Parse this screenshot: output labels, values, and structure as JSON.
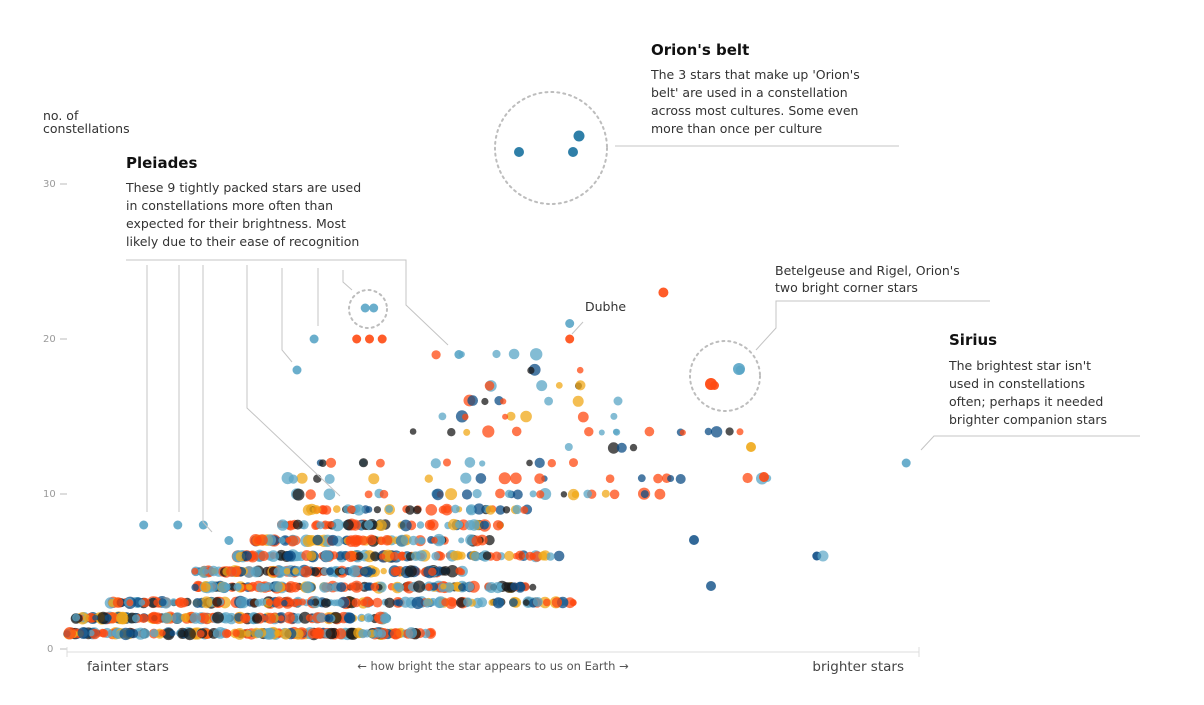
{
  "colors": {
    "blue_light": "#5aa5c6",
    "blue_dark": "#0d4d86",
    "orange_red": "#ff4a12",
    "yellow": "#f0a818",
    "dark": "#1a1a1a"
  },
  "chart_data": {
    "type": "scatter",
    "title": "",
    "xlabel": "← how bright the star appears to us on Earth →",
    "xlabel_left": "fainter stars",
    "xlabel_right": "brighter stars",
    "ylabel": "no. of constellations",
    "ylim": [
      0,
      30
    ],
    "yticks": [
      "0",
      "10",
      "20",
      "30"
    ],
    "grid": false,
    "points_note": "dense cloud of stars; highlighted points listed below (x = relative brightness 0–100)",
    "highlighted_points": [
      {
        "x": 9,
        "y": 8
      },
      {
        "x": 13,
        "y": 8
      },
      {
        "x": 16,
        "y": 8
      },
      {
        "x": 19,
        "y": 7
      },
      {
        "x": 27,
        "y": 18
      },
      {
        "x": 29,
        "y": 20
      },
      {
        "x": 35,
        "y": 22
      },
      {
        "x": 36,
        "y": 22
      },
      {
        "x": 34,
        "y": 20
      },
      {
        "x": 35.5,
        "y": 20
      },
      {
        "x": 37,
        "y": 20
      },
      {
        "x": 46,
        "y": 19
      },
      {
        "x": 59,
        "y": 21
      },
      {
        "x": 59,
        "y": 20
      },
      {
        "x": 70,
        "y": 23
      },
      {
        "x": 76,
        "y": 17
      },
      {
        "x": 79,
        "y": 18
      },
      {
        "x": 88,
        "y": 6
      },
      {
        "x": 98.5,
        "y": 12
      }
    ]
  },
  "annotations": {
    "orion_belt": {
      "title": "Orion's belt",
      "lines": [
        "The 3 stars that make up 'Orion's",
        "belt' are used in a constellation",
        "across most cultures. Some even",
        "more than once per culture"
      ]
    },
    "pleiades": {
      "title": "Pleiades",
      "lines": [
        "These 9 tightly packed stars are used",
        "in constellations more often than",
        "expected for their brightness. Most",
        "likely due to their ease of recognition"
      ]
    },
    "dubhe": {
      "label": "Dubhe"
    },
    "betelgeuse": {
      "lines": [
        "Betelgeuse and Rigel, Orion's",
        "two bright corner stars"
      ]
    },
    "sirius": {
      "title": "Sirius",
      "lines": [
        "The brightest star isn't",
        "used in constellations",
        "often; perhaps it needed",
        "brighter companion stars"
      ]
    }
  },
  "ylabel_lines": [
    "no. of",
    "constellations"
  ]
}
